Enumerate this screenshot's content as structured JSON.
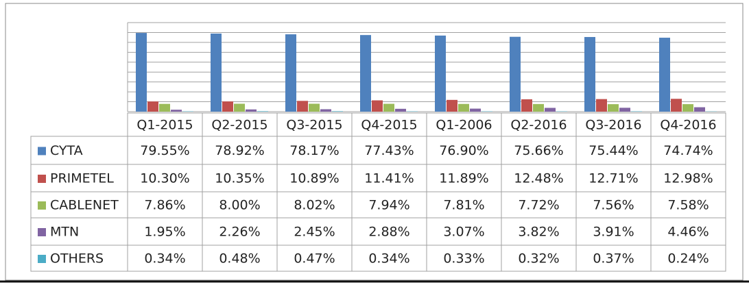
{
  "chart_data": {
    "type": "bar",
    "categories": [
      "Q1-2015",
      "Q2-2015",
      "Q3-2015",
      "Q4-2015",
      "Q1-2006",
      "Q2-2016",
      "Q3-2016",
      "Q4-2016"
    ],
    "series": [
      {
        "name": "CYTA",
        "color": "#4f81bd",
        "values": [
          79.55,
          78.92,
          78.17,
          77.43,
          76.9,
          75.66,
          75.44,
          74.74
        ],
        "value_labels": [
          "79.55%",
          "78.92%",
          "78.17%",
          "77.43%",
          "76.90%",
          "75.66%",
          "75.44%",
          "74.74%"
        ]
      },
      {
        "name": "PRIMETEL",
        "color": "#c0504d",
        "values": [
          10.3,
          10.35,
          10.89,
          11.41,
          11.89,
          12.48,
          12.71,
          12.98
        ],
        "value_labels": [
          "10.30%",
          "10.35%",
          "10.89%",
          "11.41%",
          "11.89%",
          "12.48%",
          "12.71%",
          "12.98%"
        ]
      },
      {
        "name": "CABLENET",
        "color": "#9bbb59",
        "values": [
          7.86,
          8.0,
          8.02,
          7.94,
          7.81,
          7.72,
          7.56,
          7.58
        ],
        "value_labels": [
          "7.86%",
          "8.00%",
          "8.02%",
          "7.94%",
          "7.81%",
          "7.72%",
          "7.56%",
          "7.58%"
        ]
      },
      {
        "name": "MTN",
        "color": "#8064a2",
        "values": [
          1.95,
          2.26,
          2.45,
          2.88,
          3.07,
          3.82,
          3.91,
          4.46
        ],
        "value_labels": [
          "1.95%",
          "2.26%",
          "2.45%",
          "2.88%",
          "3.07%",
          "3.82%",
          "3.91%",
          "4.46%"
        ]
      },
      {
        "name": "OTHERS",
        "color": "#4bacc6",
        "values": [
          0.34,
          0.48,
          0.47,
          0.34,
          0.33,
          0.32,
          0.37,
          0.24
        ],
        "value_labels": [
          "0.34%",
          "0.48%",
          "0.47%",
          "0.34%",
          "0.33%",
          "0.32%",
          "0.37%",
          "0.24%"
        ]
      }
    ],
    "ylim": [
      0,
      90
    ],
    "yticks": [
      0,
      10,
      20,
      30,
      40,
      50,
      60,
      70,
      80,
      90
    ],
    "grid": true
  }
}
